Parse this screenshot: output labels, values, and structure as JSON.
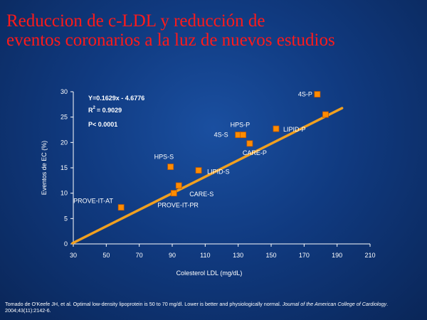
{
  "slide": {
    "title_line1": "Reduccion de c-LDL y reducción de",
    "title_line2": "eventos coronarios a la luz de nuevos estudios",
    "title_color": "#ff1a1a"
  },
  "footnote": {
    "text": "Tomado de O'Keefe JH, et al. Optimal low-density lipoprotein is 50 to 70 mg/dl. Lower is better and physiologically normal. ",
    "journal": "Journal of the American College of Cardiology",
    "citation": ". 2004;43(11):2142-6."
  },
  "chart_data": {
    "type": "scatter",
    "xlabel": "Colesterol LDL (mg/dL)",
    "ylabel": "Eventos de EC (%)",
    "xlim": [
      30,
      210
    ],
    "ylim": [
      0,
      30
    ],
    "x_ticks": [
      30,
      50,
      70,
      90,
      110,
      130,
      150,
      170,
      190,
      210
    ],
    "y_ticks": [
      0,
      5,
      10,
      15,
      20,
      25,
      30
    ],
    "grid": false,
    "marker_color": "#ff8c00",
    "line_color": "#f0a020",
    "regression": {
      "slope": 0.1629,
      "intercept": -4.6776,
      "equation": "Y=0.1629x - 4.6776",
      "r2_prefix": "R",
      "r2_exp": "2",
      "r2_value": "= 0.9029",
      "p_value": "P< 0.0001"
    },
    "points": [
      {
        "x": 59,
        "y": 7.2,
        "label": "PROVE-IT-AT"
      },
      {
        "x": 91,
        "y": 10,
        "label": "PROVE-IT-PR"
      },
      {
        "x": 94,
        "y": 11.5,
        "label": "CARE-S"
      },
      {
        "x": 89,
        "y": 15.2,
        "label": "HPS-S"
      },
      {
        "x": 106,
        "y": 14.5,
        "label": "LIPID-S"
      },
      {
        "x": 130,
        "y": 21.5,
        "label": "4S-S"
      },
      {
        "x": 133,
        "y": 21.5,
        "label": "HPS-P"
      },
      {
        "x": 137,
        "y": 19.8,
        "label": "CARE-P"
      },
      {
        "x": 153,
        "y": 22.7,
        "label": "LIPID-P"
      },
      {
        "x": 178,
        "y": 29.5,
        "label": "4S-P"
      },
      {
        "x": 183,
        "y": 25.5,
        "label": ""
      }
    ]
  }
}
